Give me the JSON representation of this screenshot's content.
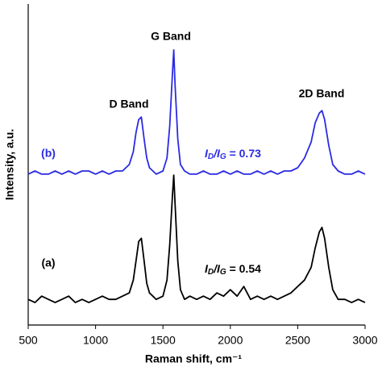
{
  "chart_data": {
    "type": "line",
    "x_label": "Raman shift, cm⁻¹",
    "y_label": "Intensity, a.u.",
    "xlim": [
      500,
      3000
    ],
    "xticks": [
      500,
      1000,
      1500,
      2000,
      2500,
      3000
    ],
    "ylim": [
      0,
      100
    ],
    "x": [
      500,
      550,
      600,
      650,
      700,
      750,
      800,
      850,
      900,
      950,
      1000,
      1050,
      1100,
      1150,
      1200,
      1250,
      1280,
      1300,
      1320,
      1340,
      1360,
      1380,
      1400,
      1450,
      1500,
      1530,
      1550,
      1570,
      1580,
      1590,
      1610,
      1630,
      1660,
      1700,
      1750,
      1800,
      1850,
      1900,
      1950,
      2000,
      2050,
      2100,
      2150,
      2200,
      2250,
      2300,
      2350,
      2400,
      2450,
      2500,
      2550,
      2600,
      2630,
      2660,
      2680,
      2700,
      2730,
      2760,
      2800,
      2850,
      2900,
      2950,
      3000
    ],
    "series": [
      {
        "name": "(a)",
        "color": "#000000",
        "values": [
          8,
          7,
          9,
          8,
          7,
          8,
          9,
          7,
          8,
          7,
          8,
          9,
          8,
          8,
          9,
          10,
          14,
          20,
          26,
          27,
          20,
          13,
          10,
          8,
          9,
          14,
          25,
          40,
          46.7,
          38,
          20,
          11,
          8,
          9,
          8,
          9,
          8,
          10,
          9,
          11,
          9,
          12,
          8,
          9,
          8,
          9,
          8,
          9,
          10,
          12,
          14,
          18,
          24,
          29,
          30.4,
          27,
          18,
          11,
          8,
          8,
          7,
          8,
          7
        ]
      },
      {
        "name": "(b)",
        "color": "#2b2be3",
        "values": [
          47,
          48,
          47,
          47,
          48,
          47,
          48,
          47,
          48,
          48,
          47,
          48,
          47,
          48,
          48,
          50,
          54,
          60,
          64,
          64.8,
          58,
          52,
          49,
          47,
          48,
          52,
          62,
          78,
          85.7,
          75,
          58,
          50,
          48,
          47,
          47,
          48,
          47,
          47,
          48,
          47,
          48,
          47,
          47,
          48,
          47,
          48,
          47,
          48,
          48,
          49,
          52,
          57,
          63,
          66,
          66.8,
          64,
          56,
          50,
          48,
          47,
          47,
          48,
          47
        ]
      }
    ],
    "annotations": [
      {
        "text": "G Band"
      },
      {
        "text": "D Band"
      },
      {
        "text": "2D Band"
      },
      {
        "parts": [
          "I",
          "D",
          "/I",
          "G",
          " = 0.73"
        ],
        "color": "#2b2be3"
      },
      {
        "parts": [
          "I",
          "D",
          "/I",
          "G",
          " = 0.54"
        ],
        "color": "#000000"
      }
    ]
  }
}
